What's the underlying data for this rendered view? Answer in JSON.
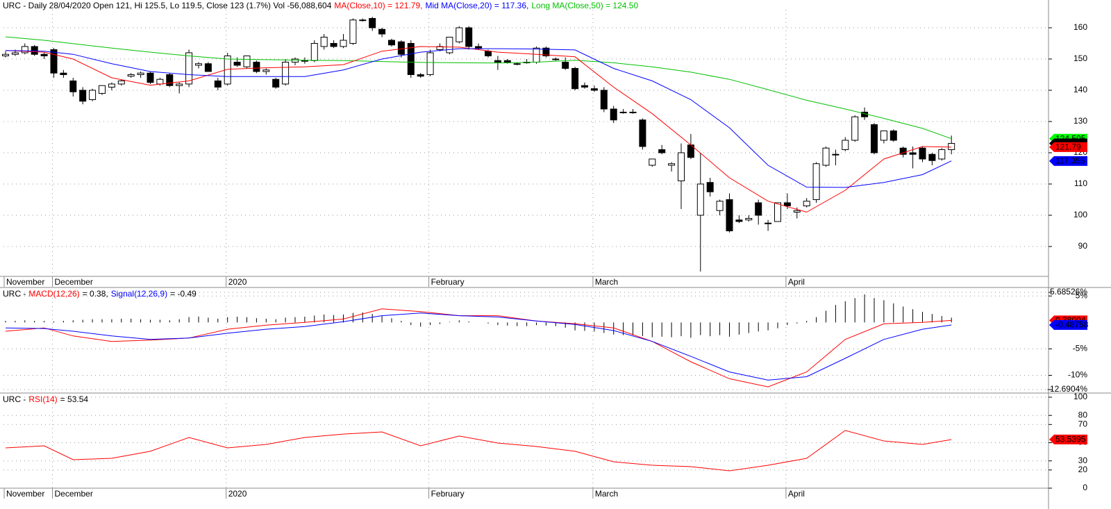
{
  "chart_data": [
    {
      "type": "candlestick",
      "header": [
        {
          "text": "URC - Daily 28/04/2020 Open 121, Hi 125.5, Lo 119.5, Close 123 (1.7%) Vol -56,088,604",
          "color": "#000000"
        },
        {
          "text": "MA(Close,10) = 121.79,",
          "color": "#ff0000"
        },
        {
          "text": "Mid MA(Close,20) = 117.36,",
          "color": "#0000ff"
        },
        {
          "text": "Long MA(Close,50) = 124.50",
          "color": "#00c000"
        }
      ],
      "categories": [
        "November",
        null,
        null,
        null,
        null,
        "December",
        null,
        null,
        null,
        null,
        null,
        null,
        null,
        null,
        null,
        null,
        null,
        null,
        null,
        null,
        null,
        null,
        null,
        "2020",
        null,
        null,
        null,
        null,
        null,
        null,
        null,
        null,
        null,
        null,
        null,
        null,
        null,
        null,
        null,
        null,
        null,
        null,
        null,
        null,
        "February",
        null,
        null,
        null,
        null,
        null,
        null,
        null,
        null,
        null,
        null,
        null,
        null,
        null,
        null,
        null,
        null,
        "March",
        null,
        null,
        null,
        null,
        null,
        null,
        null,
        null,
        null,
        null,
        null,
        null,
        null,
        null,
        null,
        null,
        null,
        null,
        null,
        "April",
        null,
        null,
        null,
        null,
        null,
        null,
        null,
        null,
        null,
        null,
        null,
        null,
        null,
        null,
        null,
        null,
        null
      ],
      "open": [
        151,
        151.5,
        152,
        154,
        151.5,
        153,
        145.5,
        143,
        140,
        137,
        139,
        141,
        142,
        144.5,
        145,
        145.5,
        142,
        145,
        141.5,
        142,
        148,
        148.5,
        143,
        142,
        149,
        147.5,
        149,
        146,
        143.5,
        142,
        149,
        149.5,
        149.5,
        154,
        155,
        154,
        155,
        162.5,
        163,
        159.5,
        156,
        155.5,
        155,
        145,
        145,
        153,
        152,
        155.5,
        160,
        154,
        152.5,
        149.5,
        149.5,
        148.5,
        149,
        149,
        153.5,
        150,
        149,
        147,
        141.5,
        140.5,
        140,
        134,
        133,
        133,
        130.5,
        116,
        121,
        116,
        111,
        122.5,
        100,
        110.5,
        101.5,
        105,
        98.5,
        98.5,
        104,
        97.5,
        98,
        104,
        101,
        103,
        105,
        116,
        119.5,
        121,
        124,
        133,
        129,
        124,
        127,
        121.5,
        120,
        121.5,
        119.5,
        118,
        121
      ],
      "high": [
        152.5,
        153,
        155,
        154.5,
        152,
        153.5,
        146.5,
        144,
        141,
        140.5,
        141.5,
        142.5,
        143.5,
        145.5,
        146,
        146,
        144,
        145.5,
        142.5,
        153,
        149,
        149,
        144,
        152,
        150.5,
        151,
        149.5,
        147,
        144,
        150,
        150.5,
        150.5,
        156,
        158,
        156,
        158,
        163,
        163,
        163.5,
        160,
        156.5,
        156,
        156,
        145.5,
        153,
        155,
        157,
        160.5,
        160.5,
        155,
        153,
        151,
        150,
        149,
        150,
        154,
        154,
        150.5,
        150.5,
        147.5,
        142.5,
        141.5,
        141,
        135,
        134,
        134,
        131,
        118,
        122.5,
        117,
        123,
        126,
        120,
        112,
        105,
        107,
        100,
        100,
        105,
        98.5,
        104,
        107,
        102.5,
        105.5,
        117,
        122,
        121,
        125,
        132,
        134.5,
        129.5,
        127,
        127.5,
        122,
        122,
        122,
        120,
        121.5,
        125.5
      ],
      "low": [
        150.5,
        151,
        151.5,
        151,
        150,
        144,
        144,
        138,
        135.5,
        136.5,
        138.5,
        140,
        141.5,
        144,
        144,
        142,
        141.5,
        141,
        139,
        141,
        147,
        146,
        140,
        141.5,
        147.5,
        147,
        145.5,
        145,
        140.5,
        141.5,
        148,
        148.5,
        149,
        153,
        153.5,
        153.5,
        154.5,
        162,
        159,
        157,
        154,
        150.5,
        144,
        144,
        144.5,
        152.5,
        151.5,
        155,
        153,
        153,
        150.5,
        146.5,
        148.5,
        148,
        148.5,
        148.5,
        150.5,
        149.5,
        146.5,
        140,
        140.5,
        139.5,
        133,
        129.5,
        132.5,
        132.5,
        121,
        115.5,
        119.5,
        114,
        102,
        118,
        82,
        106,
        100,
        94.5,
        97.5,
        98,
        97,
        95,
        98,
        102,
        99,
        102.5,
        104,
        115.5,
        116,
        120.5,
        123.5,
        130.5,
        119.5,
        123,
        123.5,
        118.5,
        115,
        117,
        116,
        117.5,
        119.5
      ],
      "close": [
        151.5,
        152,
        154,
        151.5,
        151,
        145.5,
        145,
        139.5,
        136.5,
        140,
        141.5,
        142,
        143,
        145,
        145.5,
        142.5,
        143.5,
        141.5,
        142,
        152,
        148.5,
        146,
        141,
        151,
        148,
        151,
        146,
        146.5,
        141,
        149,
        150,
        149.5,
        155,
        157,
        154,
        156,
        162.5,
        162.5,
        160,
        158,
        154.5,
        151.5,
        145,
        144.5,
        152,
        154,
        157,
        160,
        154,
        153.5,
        151,
        149,
        149,
        148.5,
        149,
        153.5,
        151,
        150,
        147,
        140.5,
        141,
        140,
        134,
        130.5,
        133,
        133,
        122,
        118,
        120,
        116.5,
        120,
        118.5,
        110,
        107.5,
        104.5,
        95,
        98,
        99,
        100,
        97.5,
        104,
        103,
        101.5,
        104.5,
        116.5,
        121.5,
        119.5,
        124,
        131.5,
        131.5,
        120,
        127,
        124,
        119.5,
        119.5,
        118,
        117.5,
        121,
        123
      ],
      "series": [
        {
          "color": "#00c000",
          "x": [
            0,
            4,
            7,
            11,
            15,
            19,
            23,
            27,
            31,
            35,
            39,
            43,
            47,
            51,
            55,
            59,
            63,
            67,
            71,
            75,
            79,
            83,
            87,
            91,
            95,
            98
          ],
          "values": [
            157.1,
            156,
            154.9,
            153.5,
            152.2,
            151,
            150,
            149.8,
            149.6,
            149.5,
            149.2,
            148.9,
            148.8,
            148.7,
            149,
            149.6,
            148.8,
            147.5,
            145.8,
            143.5,
            140.2,
            136.8,
            134,
            131,
            127.8,
            124.5
          ]
        },
        {
          "color": "#ff0000",
          "x": [
            0,
            4,
            7,
            11,
            15,
            19,
            23,
            27,
            31,
            35,
            39,
            43,
            47,
            51,
            55,
            59,
            63,
            67,
            71,
            75,
            79,
            83,
            87,
            91,
            95,
            98
          ],
          "values": [
            152.7,
            152.2,
            150,
            144,
            141.6,
            143,
            146.7,
            147.2,
            147.5,
            148.2,
            152.5,
            154,
            153.8,
            152.2,
            151.5,
            150.7,
            141,
            132.5,
            122.5,
            112,
            104.5,
            101,
            108,
            118,
            122,
            121.8
          ]
        },
        {
          "color": "#0000ff",
          "x": [
            0,
            4,
            7,
            11,
            15,
            19,
            23,
            27,
            31,
            35,
            39,
            43,
            47,
            51,
            55,
            59,
            63,
            67,
            71,
            75,
            79,
            83,
            87,
            91,
            95,
            98
          ],
          "values": [
            152.7,
            152.5,
            151.5,
            148.5,
            146,
            145,
            144.4,
            144.4,
            144.4,
            146.5,
            150,
            152.2,
            153.3,
            153.3,
            153.2,
            152.9,
            147,
            143,
            137,
            128,
            116,
            109,
            108.9,
            110.5,
            113,
            117.4
          ]
        }
      ],
      "last_values": [
        {
          "value": 124.505,
          "color": "#00ff00",
          "text_color": "#000000"
        },
        {
          "value": 123,
          "color": "#000000",
          "text_color": "#ffffff"
        },
        {
          "value": 121.79,
          "color": "#ff0000",
          "text_color": "#000000"
        },
        {
          "value": 117.355,
          "color": "#0000ff",
          "text_color": "#ffffff"
        }
      ],
      "ylim": [
        80.44,
        165.33
      ],
      "yticks": [
        90,
        100,
        110,
        120,
        130,
        140,
        150,
        160
      ],
      "grid": true,
      "date_axis": true
    },
    {
      "type": "macd",
      "header": [
        {
          "text": "URC -",
          "color": "#000000"
        },
        {
          "text": "MACD(12,26)",
          "color": "#ff0000"
        },
        {
          "text": "= 0.38,",
          "color": "#000000"
        },
        {
          "text": "Signal(12,26,9)",
          "color": "#0000ff"
        },
        {
          "text": "= -0.49",
          "color": "#000000"
        }
      ],
      "histogram": [
        0.3,
        0.3,
        0.4,
        0.3,
        0.3,
        0.2,
        0.3,
        0.4,
        0.5,
        0.6,
        0.6,
        0.6,
        0.7,
        0.7,
        0.6,
        0.5,
        0.5,
        0.4,
        0.6,
        1.0,
        1.1,
        0.9,
        0.7,
        1.0,
        1.1,
        1.0,
        0.8,
        0.7,
        0.6,
        0.9,
        1.0,
        1.1,
        1.3,
        1.5,
        1.4,
        1.5,
        1.8,
        1.9,
        1.6,
        1.2,
        0.8,
        0.3,
        -0.5,
        -0.8,
        -0.5,
        -0.3,
        0.1,
        0.4,
        0.2,
        0.0,
        -0.2,
        -0.5,
        -0.6,
        -0.7,
        -0.7,
        -0.5,
        -0.6,
        -0.7,
        -1.0,
        -1.5,
        -1.6,
        -1.7,
        -2.0,
        -2.3,
        -2.4,
        -2.4,
        -2.6,
        -2.8,
        -2.7,
        -2.8,
        -2.6,
        -2.9,
        -2.4,
        -2.6,
        -2.4,
        -2.7,
        -2.3,
        -2.0,
        -1.7,
        -1.5,
        -1.1,
        -0.5,
        -0.2,
        0.3,
        1.0,
        2.2,
        3.3,
        4.0,
        4.6,
        5.3,
        4.6,
        4.2,
        3.6,
        3.0,
        2.5,
        2.0,
        1.6,
        1.2,
        0.9
      ],
      "series": [
        {
          "color": "#ff0000",
          "x": [
            0,
            4,
            7,
            11,
            15,
            19,
            23,
            27,
            31,
            35,
            39,
            43,
            47,
            51,
            55,
            59,
            63,
            67,
            71,
            75,
            79,
            83,
            87,
            91,
            95,
            98
          ],
          "values": [
            -1.67,
            -1.03,
            -2.56,
            -3.59,
            -3.33,
            -2.95,
            -1.28,
            -0.51,
            0,
            0.64,
            2.56,
            2.05,
            1.28,
            1.28,
            0.26,
            -0.26,
            -1.03,
            -3.59,
            -7.44,
            -10.64,
            -12.18,
            -9.36,
            -3.21,
            -0.26,
            0,
            0.38
          ]
        },
        {
          "color": "#0000ff",
          "x": [
            0,
            4,
            7,
            11,
            15,
            19,
            23,
            27,
            31,
            35,
            39,
            43,
            47,
            51,
            55,
            59,
            63,
            67,
            71,
            75,
            79,
            83,
            87,
            91,
            95,
            98
          ],
          "values": [
            -1.03,
            -1.15,
            -1.67,
            -2.56,
            -3.21,
            -2.95,
            -2.05,
            -1.28,
            -0.77,
            0.13,
            1.28,
            1.79,
            1.28,
            1.03,
            0.26,
            -0.38,
            -1.54,
            -3.59,
            -6.41,
            -9.36,
            -10.9,
            -10.26,
            -6.79,
            -3.21,
            -1.28,
            -0.49
          ]
        }
      ],
      "last_values": [
        {
          "value": 0.38004,
          "color": "#ff0000",
          "text_color": "#000000"
        },
        {
          "value": -0.48758,
          "color": "#0000ff",
          "text_color": "#ffffff"
        }
      ],
      "ylim": [
        -12.6904,
        5.68526
      ],
      "yticks": [
        {
          "value": 5.68526,
          "label": "5.68526%"
        },
        {
          "value": 5,
          "label": "5%"
        },
        {
          "value": -5,
          "label": "-5%"
        },
        {
          "value": -10,
          "label": "-10%"
        },
        {
          "value": -12.6904,
          "label": "-12.6904%"
        }
      ],
      "grid": true,
      "date_axis": false
    },
    {
      "type": "line",
      "header": [
        {
          "text": "URC -",
          "color": "#000000"
        },
        {
          "text": "RSI(14)",
          "color": "#ff0000"
        },
        {
          "text": "= 53.54",
          "color": "#000000"
        }
      ],
      "series": [
        {
          "color": "#ff0000",
          "x": [
            0,
            4,
            7,
            11,
            15,
            19,
            23,
            27,
            31,
            35,
            39,
            43,
            47,
            51,
            55,
            59,
            63,
            67,
            71,
            75,
            79,
            83,
            87,
            91,
            95,
            98
          ],
          "values": [
            44.3,
            46.6,
            31.3,
            32.8,
            40.5,
            55.7,
            44.3,
            48.1,
            55.7,
            59.5,
            61.8,
            46.6,
            57.3,
            49.6,
            45.8,
            40.5,
            29,
            25.2,
            23.7,
            19.1,
            25.2,
            32.8,
            63.4,
            51.9,
            48.1,
            53.4
          ]
        }
      ],
      "last_values": [
        {
          "value": 53.5395,
          "color": "#ff0000",
          "text_color": "#000000"
        }
      ],
      "ylim": [
        0,
        100
      ],
      "yticks": [
        0,
        20,
        30,
        50,
        70,
        80,
        100
      ],
      "grid": true,
      "date_axis": true
    }
  ]
}
